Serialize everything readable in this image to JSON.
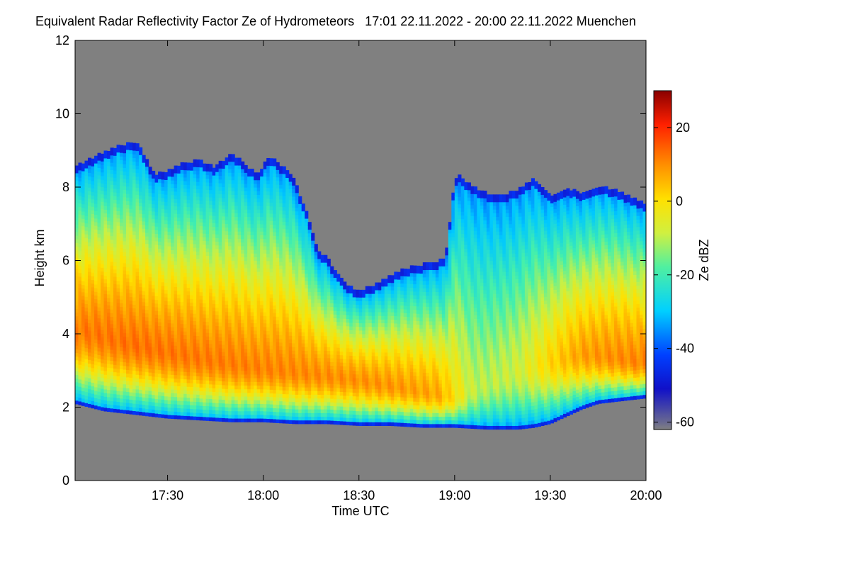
{
  "title": "Equivalent Radar Reflectivity Factor Ze of Hydrometeors   17:01 22.11.2022 - 20:00 22.11.2022 Muenchen",
  "chart_data": {
    "type": "heatmap",
    "title": "Equivalent Radar Reflectivity Factor Ze of Hydrometeors",
    "subtitle": "17:01 22.11.2022 - 20:00 22.11.2022 Muenchen",
    "xlabel": "Time UTC",
    "ylabel": "Height km",
    "x_range_minutes": [
      1021,
      1200
    ],
    "x_ticks": [
      {
        "label": "17:30",
        "minute": 1050
      },
      {
        "label": "18:00",
        "minute": 1080
      },
      {
        "label": "18:30",
        "minute": 1110
      },
      {
        "label": "19:00",
        "minute": 1140
      },
      {
        "label": "19:30",
        "minute": 1170
      },
      {
        "label": "20:00",
        "minute": 1200
      }
    ],
    "ylim": [
      0,
      12
    ],
    "y_ticks": [
      {
        "label": "0",
        "value": 0
      },
      {
        "label": "2",
        "value": 2
      },
      {
        "label": "4",
        "value": 4
      },
      {
        "label": "6",
        "value": 6
      },
      {
        "label": "8",
        "value": 8
      },
      {
        "label": "10",
        "value": 10
      },
      {
        "label": "12",
        "value": 12
      }
    ],
    "colorbar": {
      "label": "Ze dBZ",
      "range": [
        -62,
        30
      ],
      "ticks": [
        {
          "label": "-60",
          "value": -60
        },
        {
          "label": "-40",
          "value": -40
        },
        {
          "label": "-20",
          "value": -20
        },
        {
          "label": "0",
          "value": 0
        },
        {
          "label": "20",
          "value": 20
        }
      ]
    },
    "no_data_color": "#808080",
    "cloud": {
      "top_km": [
        [
          1021,
          8.5
        ],
        [
          1025,
          8.7
        ],
        [
          1030,
          8.9
        ],
        [
          1035,
          9.1
        ],
        [
          1040,
          9.2
        ],
        [
          1043,
          8.8
        ],
        [
          1046,
          8.3
        ],
        [
          1050,
          8.4
        ],
        [
          1055,
          8.6
        ],
        [
          1060,
          8.7
        ],
        [
          1065,
          8.5
        ],
        [
          1070,
          8.9
        ],
        [
          1074,
          8.6
        ],
        [
          1078,
          8.3
        ],
        [
          1082,
          8.8
        ],
        [
          1085,
          8.6
        ],
        [
          1089,
          8.3
        ],
        [
          1093,
          7.4
        ],
        [
          1095,
          6.8
        ],
        [
          1097,
          6.2
        ],
        [
          1099,
          6.1
        ],
        [
          1101,
          5.9
        ],
        [
          1103,
          5.6
        ],
        [
          1105,
          5.4
        ],
        [
          1107,
          5.25
        ],
        [
          1110,
          5.15
        ],
        [
          1115,
          5.3
        ],
        [
          1120,
          5.55
        ],
        [
          1125,
          5.75
        ],
        [
          1130,
          5.85
        ],
        [
          1135,
          5.95
        ],
        [
          1137,
          6.0
        ],
        [
          1138,
          6.5
        ],
        [
          1139,
          7.5
        ],
        [
          1140,
          8.0
        ],
        [
          1141,
          8.3
        ],
        [
          1145,
          8.0
        ],
        [
          1150,
          7.8
        ],
        [
          1155,
          7.7
        ],
        [
          1160,
          7.9
        ],
        [
          1165,
          8.2
        ],
        [
          1170,
          7.7
        ],
        [
          1175,
          7.9
        ],
        [
          1180,
          7.8
        ],
        [
          1185,
          8.0
        ],
        [
          1190,
          7.9
        ],
        [
          1195,
          7.7
        ],
        [
          1200,
          7.5
        ]
      ],
      "base_km": [
        [
          1021,
          2.1
        ],
        [
          1030,
          1.9
        ],
        [
          1040,
          1.8
        ],
        [
          1050,
          1.7
        ],
        [
          1060,
          1.65
        ],
        [
          1070,
          1.6
        ],
        [
          1080,
          1.6
        ],
        [
          1090,
          1.55
        ],
        [
          1100,
          1.55
        ],
        [
          1110,
          1.5
        ],
        [
          1120,
          1.5
        ],
        [
          1130,
          1.45
        ],
        [
          1140,
          1.45
        ],
        [
          1150,
          1.4
        ],
        [
          1160,
          1.4
        ],
        [
          1165,
          1.45
        ],
        [
          1170,
          1.55
        ],
        [
          1175,
          1.75
        ],
        [
          1180,
          1.95
        ],
        [
          1185,
          2.1
        ],
        [
          1190,
          2.15
        ],
        [
          1195,
          2.2
        ],
        [
          1200,
          2.25
        ]
      ],
      "core_km": [
        [
          1021,
          4.15
        ],
        [
          1035,
          3.8
        ],
        [
          1050,
          3.5
        ],
        [
          1065,
          3.25
        ],
        [
          1080,
          3.05
        ],
        [
          1095,
          2.9
        ],
        [
          1110,
          2.75
        ],
        [
          1125,
          2.5
        ],
        [
          1140,
          2.25
        ],
        [
          1150,
          2.6
        ],
        [
          1160,
          3.0
        ],
        [
          1170,
          3.25
        ],
        [
          1180,
          3.45
        ],
        [
          1190,
          3.35
        ],
        [
          1200,
          3.2
        ]
      ],
      "core_peak_dbz": [
        [
          1021,
          6
        ],
        [
          1040,
          7
        ],
        [
          1060,
          6
        ],
        [
          1080,
          5
        ],
        [
          1100,
          4
        ],
        [
          1120,
          3
        ],
        [
          1135,
          1
        ],
        [
          1145,
          -12
        ],
        [
          1150,
          -13
        ],
        [
          1160,
          -11
        ],
        [
          1170,
          -4
        ],
        [
          1180,
          2
        ],
        [
          1190,
          4
        ],
        [
          1200,
          5
        ]
      ]
    }
  }
}
